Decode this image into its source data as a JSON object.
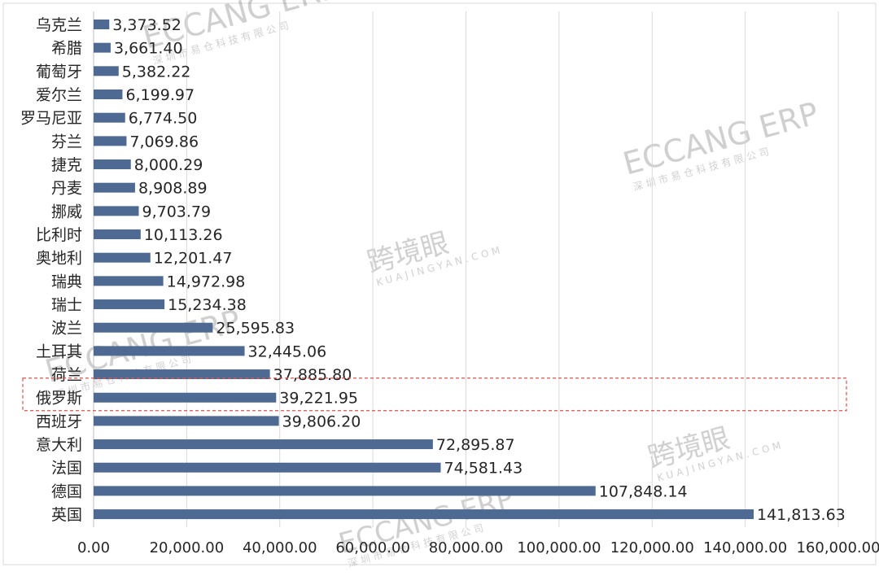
{
  "chart_data": {
    "type": "bar",
    "orientation": "horizontal",
    "title": "",
    "xlabel": "",
    "ylabel": "",
    "categories": [
      "乌克兰",
      "希腊",
      "葡萄牙",
      "爱尔兰",
      "罗马尼亚",
      "芬兰",
      "捷克",
      "丹麦",
      "挪威",
      "比利时",
      "奥地利",
      "瑞典",
      "瑞士",
      "波兰",
      "土耳其",
      "荷兰",
      "俄罗斯",
      "西班牙",
      "意大利",
      "法国",
      "德国",
      "英国"
    ],
    "values": [
      3373.52,
      3661.4,
      5382.22,
      6199.97,
      6774.5,
      7069.86,
      8000.29,
      8908.89,
      9703.79,
      10113.26,
      12201.47,
      14972.98,
      15234.38,
      25595.83,
      32445.06,
      37885.8,
      39221.95,
      39806.2,
      72895.87,
      74581.43,
      107848.14,
      141813.63
    ],
    "value_labels": [
      "3,373.52",
      "3,661.40",
      "5,382.22",
      "6,199.97",
      "6,774.50",
      "7,069.86",
      "8,000.29",
      "8,908.89",
      "9,703.79",
      "10,113.26",
      "12,201.47",
      "14,972.98",
      "15,234.38",
      "25,595.83",
      "32,445.06",
      "37,885.80",
      "39,221.95",
      "39,806.20",
      "72,895.87",
      "74,581.43",
      "107,848.14",
      "141,813.63"
    ],
    "xlim": [
      0,
      160000
    ],
    "xticks": [
      0,
      20000,
      40000,
      60000,
      80000,
      100000,
      120000,
      140000,
      160000
    ],
    "xtick_labels": [
      "0.00",
      "20,000.00",
      "40,000.00",
      "60,000.00",
      "80,000.00",
      "100,000.00",
      "120,000.00",
      "140,000.00",
      "160,000.00"
    ],
    "grid": "vertical",
    "bar_color": "#4f6a92",
    "highlight": {
      "category": "俄罗斯",
      "style": "dashed-box",
      "color": "#d9534f"
    }
  },
  "watermarks": [
    {
      "text": "ECCANG ERP"
    },
    {
      "text": "深圳市易仓科技有限公司"
    },
    {
      "text": "跨境眼"
    },
    {
      "text": "KUAJINGYAN.COM"
    }
  ]
}
